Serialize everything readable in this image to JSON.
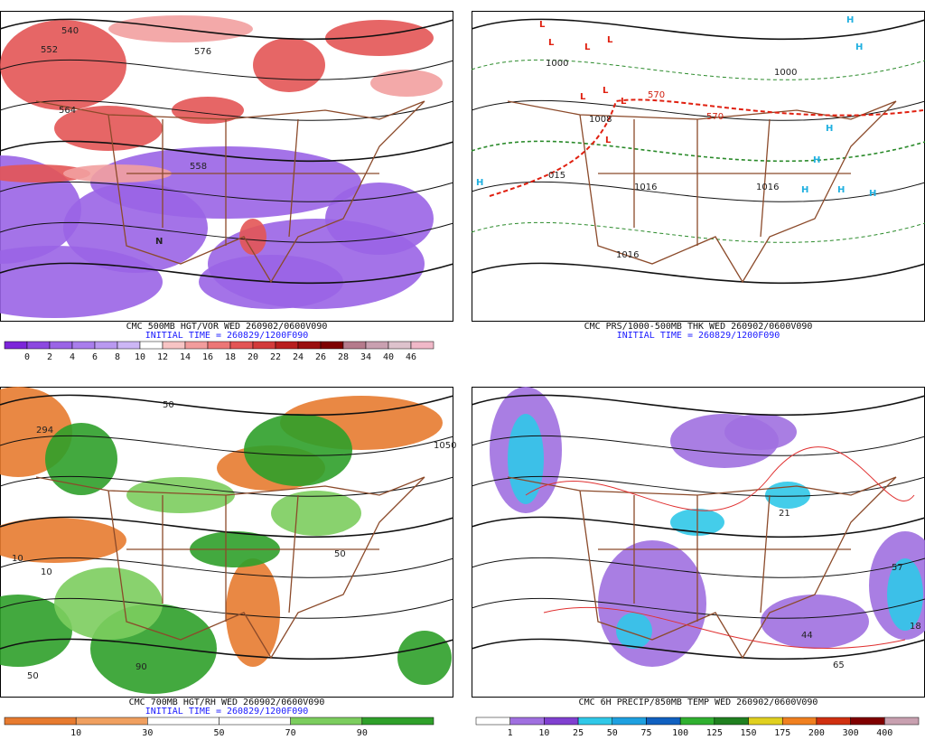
{
  "panels": [
    {
      "title": "CMC 500MB HGT/VOR WED 260902/0600V090",
      "initial_time": "INITIAL TIME = 260829/1200F090",
      "legend_labels": [
        "0",
        "2",
        "4",
        "6",
        "8",
        "10",
        "12",
        "14",
        "16",
        "18",
        "20",
        "22",
        "24",
        "26",
        "28",
        "34",
        "40",
        "46"
      ],
      "map_labels": [
        "540",
        "552",
        "564",
        "576",
        "558",
        "N"
      ]
    },
    {
      "title": "CMC PRS/1000-500MB THK WED 260902/0600V090",
      "initial_time": "INITIAL TIME = 260829/1200F090",
      "legend_labels": [],
      "map_labels": [
        "L",
        "L",
        "L",
        "L",
        "L",
        "L",
        "L",
        "L",
        "H",
        "H",
        "H",
        "H",
        "H",
        "H",
        "H",
        "H",
        "1000",
        "1000",
        "1008",
        "1016",
        "1016",
        "015",
        "1016",
        "570",
        "570"
      ]
    },
    {
      "title": "CMC 700MB HGT/RH WED 260902/0600V090",
      "initial_time": "INITIAL TIME = 260829/1200F090",
      "legend_labels": [
        "10",
        "30",
        "50",
        "70",
        "90"
      ],
      "map_labels": [
        "294",
        "50",
        "10",
        "10",
        "50",
        "90",
        "50",
        "1050"
      ]
    },
    {
      "title": "CMC 6H PRECIP/850MB TEMP WED 260902/0600V090",
      "initial_time": "",
      "legend_labels": [
        "1",
        "10",
        "25",
        "50",
        "75",
        "100",
        "125",
        "150",
        "175",
        "200",
        "300",
        "400"
      ],
      "map_labels": [
        "21",
        "57",
        "44",
        "65",
        "18"
      ]
    }
  ]
}
